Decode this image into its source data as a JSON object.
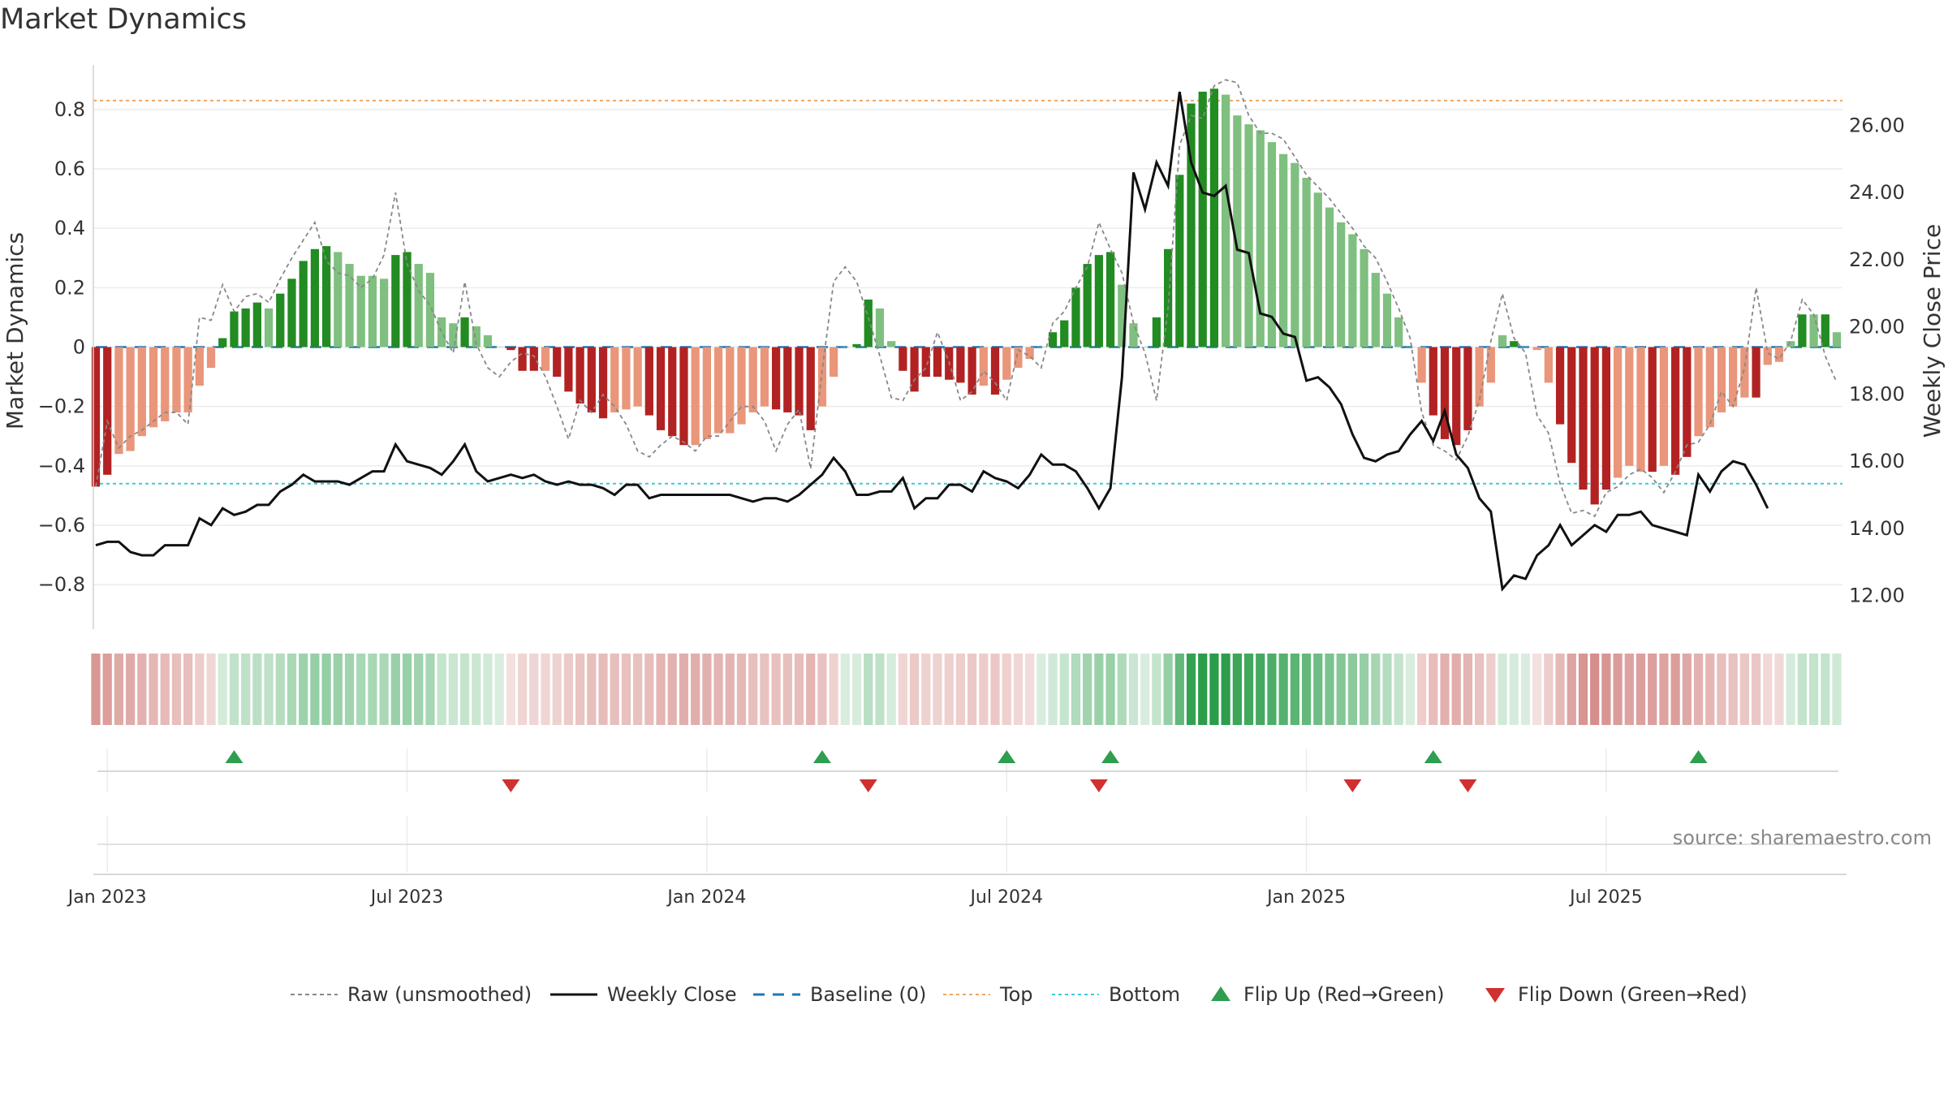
{
  "title": "Market Dynamics",
  "source": "source: sharemaestro.com",
  "colors": {
    "strong_green": "#228b22",
    "light_green": "#7fbf7f",
    "strong_red": "#b22222",
    "light_red": "#e9967a",
    "close": "#111111",
    "raw": "#888888",
    "baseline": "#1f77b4",
    "top": "#f4a460",
    "bottom": "#40c8d8",
    "flip_up": "#2e9e4f",
    "flip_down": "#d03030"
  },
  "chart_data": {
    "type": "bar",
    "title": "Market Dynamics",
    "ylabel": "Market Dynamics",
    "y2label": "Weekly Close Price",
    "ylim": [
      -0.95,
      0.95
    ],
    "y2lim": [
      11.0,
      27.8
    ],
    "yticks": [
      "0.8",
      "0.6",
      "0.4",
      "0.2",
      "0",
      "−0.2",
      "−0.4",
      "−0.6",
      "−0.8"
    ],
    "y2ticks": [
      "26.00",
      "24.00",
      "22.00",
      "20.00",
      "18.00",
      "16.00",
      "14.00",
      "12.00"
    ],
    "xticks": [
      "Jan 2023",
      "Jul 2023",
      "Jan 2024",
      "Jul 2024",
      "Jan 2025",
      "Jul 2025"
    ],
    "xtick_weeks": [
      1,
      27,
      53,
      79,
      105,
      131
    ],
    "grid": true,
    "top_line": 0.83,
    "bottom_line": -0.46,
    "dynamics": [
      -0.47,
      -0.43,
      -0.36,
      -0.35,
      -0.3,
      -0.27,
      -0.25,
      -0.22,
      -0.22,
      -0.13,
      -0.07,
      0.03,
      0.12,
      0.13,
      0.15,
      0.13,
      0.18,
      0.23,
      0.29,
      0.33,
      0.34,
      0.32,
      0.28,
      0.24,
      0.24,
      0.23,
      0.31,
      0.32,
      0.28,
      0.25,
      0.1,
      0.08,
      0.1,
      0.07,
      0.04,
      0,
      -0.01,
      -0.08,
      -0.08,
      -0.08,
      -0.1,
      -0.15,
      -0.19,
      -0.22,
      -0.24,
      -0.22,
      -0.21,
      -0.2,
      -0.23,
      -0.28,
      -0.3,
      -0.33,
      -0.33,
      -0.31,
      -0.29,
      -0.29,
      -0.26,
      -0.22,
      -0.2,
      -0.21,
      -0.22,
      -0.23,
      -0.28,
      -0.2,
      -0.1,
      0,
      0.01,
      0.16,
      0.13,
      0.02,
      -0.08,
      -0.15,
      -0.1,
      -0.1,
      -0.11,
      -0.12,
      -0.16,
      -0.13,
      -0.16,
      -0.11,
      -0.07,
      -0.04,
      0,
      0.05,
      0.09,
      0.2,
      0.28,
      0.31,
      0.32,
      0.21,
      0.08,
      0,
      0.1,
      0.33,
      0.58,
      0.82,
      0.86,
      0.87,
      0.85,
      0.78,
      0.75,
      0.73,
      0.69,
      0.65,
      0.62,
      0.57,
      0.52,
      0.47,
      0.42,
      0.38,
      0.33,
      0.25,
      0.18,
      0.1,
      0,
      -0.12,
      -0.23,
      -0.31,
      -0.33,
      -0.28,
      -0.2,
      -0.12,
      0.04,
      0.02,
      0,
      -0.01,
      -0.12,
      -0.26,
      -0.39,
      -0.48,
      -0.53,
      -0.48,
      -0.44,
      -0.4,
      -0.42,
      -0.42,
      -0.4,
      -0.43,
      -0.37,
      -0.3,
      -0.27,
      -0.22,
      -0.2,
      -0.17,
      -0.17,
      -0.06,
      -0.05,
      0.02,
      0.11,
      0.11,
      0.11,
      0.05
    ],
    "strong": [
      1,
      1,
      0,
      0,
      0,
      0,
      0,
      0,
      0,
      0,
      0,
      1,
      1,
      1,
      1,
      0,
      1,
      1,
      1,
      1,
      1,
      0,
      0,
      0,
      0,
      0,
      1,
      1,
      0,
      0,
      0,
      0,
      1,
      0,
      0,
      0,
      1,
      1,
      1,
      0,
      1,
      1,
      1,
      1,
      1,
      0,
      0,
      0,
      1,
      1,
      1,
      1,
      0,
      0,
      0,
      0,
      0,
      0,
      0,
      1,
      1,
      1,
      1,
      0,
      0,
      0,
      1,
      1,
      0,
      0,
      1,
      1,
      1,
      1,
      1,
      1,
      1,
      0,
      1,
      0,
      0,
      0,
      0,
      1,
      1,
      1,
      1,
      1,
      1,
      0,
      0,
      0,
      1,
      1,
      1,
      1,
      1,
      1,
      0,
      0,
      0,
      0,
      0,
      0,
      0,
      0,
      0,
      0,
      0,
      0,
      0,
      0,
      0,
      0,
      0,
      0,
      1,
      1,
      1,
      1,
      0,
      0,
      0,
      1,
      0,
      0,
      0,
      1,
      1,
      1,
      1,
      1,
      0,
      0,
      0,
      1,
      0,
      1,
      1,
      0,
      0,
      0,
      0,
      0,
      1,
      0,
      0,
      0,
      1,
      0,
      1,
      0
    ],
    "raw": [
      -0.47,
      -0.25,
      -0.34,
      -0.3,
      -0.28,
      -0.25,
      -0.22,
      -0.22,
      -0.26,
      0.1,
      0.09,
      0.21,
      0.12,
      0.17,
      0.18,
      0.15,
      0.23,
      0.3,
      0.36,
      0.42,
      0.29,
      0.25,
      0.24,
      0.2,
      0.23,
      0.31,
      0.52,
      0.28,
      0.19,
      0.14,
      0.05,
      -0.02,
      0.22,
      0.01,
      -0.07,
      -0.1,
      -0.05,
      -0.02,
      -0.03,
      -0.1,
      -0.2,
      -0.31,
      -0.18,
      -0.22,
      -0.16,
      -0.2,
      -0.26,
      -0.35,
      -0.37,
      -0.33,
      -0.3,
      -0.32,
      -0.35,
      -0.3,
      -0.3,
      -0.25,
      -0.2,
      -0.2,
      -0.25,
      -0.35,
      -0.26,
      -0.21,
      -0.41,
      -0.08,
      0.22,
      0.27,
      0.22,
      0.1,
      -0.03,
      -0.17,
      -0.18,
      -0.11,
      -0.07,
      0.05,
      -0.05,
      -0.18,
      -0.15,
      -0.08,
      -0.12,
      -0.18,
      -0.01,
      -0.03,
      -0.07,
      0.08,
      0.12,
      0.2,
      0.27,
      0.42,
      0.33,
      0.25,
      0.08,
      -0.02,
      -0.18,
      0.13,
      0.68,
      0.78,
      0.77,
      0.88,
      0.9,
      0.89,
      0.78,
      0.72,
      0.72,
      0.7,
      0.64,
      0.58,
      0.54,
      0.5,
      0.45,
      0.4,
      0.34,
      0.3,
      0.22,
      0.13,
      0.03,
      -0.22,
      -0.33,
      -0.35,
      -0.38,
      -0.3,
      -0.18,
      0.02,
      0.18,
      0.03,
      -0.02,
      -0.23,
      -0.29,
      -0.46,
      -0.56,
      -0.55,
      -0.57,
      -0.49,
      -0.47,
      -0.43,
      -0.41,
      -0.44,
      -0.49,
      -0.42,
      -0.33,
      -0.32,
      -0.26,
      -0.15,
      -0.2,
      -0.07,
      0.2,
      -0.02,
      -0.04,
      0.02,
      0.16,
      0.11,
      -0.03,
      -0.12
    ],
    "close": [
      13.5,
      13.6,
      13.6,
      13.3,
      13.2,
      13.2,
      13.5,
      13.5,
      13.5,
      14.3,
      14.1,
      14.6,
      14.4,
      14.5,
      14.7,
      14.7,
      15.1,
      15.3,
      15.6,
      15.4,
      15.4,
      15.4,
      15.3,
      15.5,
      15.7,
      15.7,
      16.5,
      16.0,
      15.9,
      15.8,
      15.6,
      16.0,
      16.5,
      15.7,
      15.4,
      15.5,
      15.6,
      15.5,
      15.6,
      15.4,
      15.3,
      15.4,
      15.3,
      15.3,
      15.2,
      15.0,
      15.3,
      15.3,
      14.9,
      15.0,
      15.0,
      15.0,
      15.0,
      15.0,
      15.0,
      15.0,
      14.9,
      14.8,
      14.9,
      14.9,
      14.8,
      15.0,
      15.3,
      15.6,
      16.1,
      15.7,
      15.0,
      15.0,
      15.1,
      15.1,
      15.5,
      14.6,
      14.9,
      14.9,
      15.3,
      15.3,
      15.1,
      15.7,
      15.5,
      15.4,
      15.2,
      15.6,
      16.2,
      15.9,
      15.9,
      15.7,
      15.2,
      14.6,
      15.2,
      18.5,
      24.6,
      23.5,
      24.9,
      24.2,
      27.0,
      24.9,
      24.0,
      23.9,
      24.2,
      22.3,
      22.2,
      20.4,
      20.3,
      19.8,
      19.7,
      18.4,
      18.5,
      18.2,
      17.7,
      16.8,
      16.1,
      16.0,
      16.2,
      16.3,
      16.8,
      17.2,
      16.6,
      17.5,
      16.2,
      15.8,
      14.9,
      14.5,
      12.2,
      12.6,
      12.5,
      13.2,
      13.5,
      14.1,
      13.5,
      13.8,
      14.1,
      13.9,
      14.4,
      14.4,
      14.5,
      14.1,
      14.0,
      13.9,
      13.8,
      15.6,
      15.1,
      15.7,
      16.0,
      15.9,
      15.3,
      14.6
    ],
    "flip_up_weeks": [
      12,
      63,
      79,
      88,
      116,
      139
    ],
    "flip_down_weeks": [
      36,
      67,
      87,
      109,
      119
    ],
    "legend": [
      {
        "label": "Raw (unsmoothed)",
        "style": "dashed-gray"
      },
      {
        "label": "Weekly Close",
        "style": "solid-black"
      },
      {
        "label": "Baseline (0)",
        "style": "dashed-blue"
      },
      {
        "label": "Top",
        "style": "dotted-orange"
      },
      {
        "label": "Bottom",
        "style": "dotted-cyan"
      },
      {
        "label": "Flip Up (Red→Green)",
        "style": "triangle-up-green"
      },
      {
        "label": "Flip Down (Green→Red)",
        "style": "triangle-down-red"
      }
    ],
    "legend_position": "bottom"
  }
}
